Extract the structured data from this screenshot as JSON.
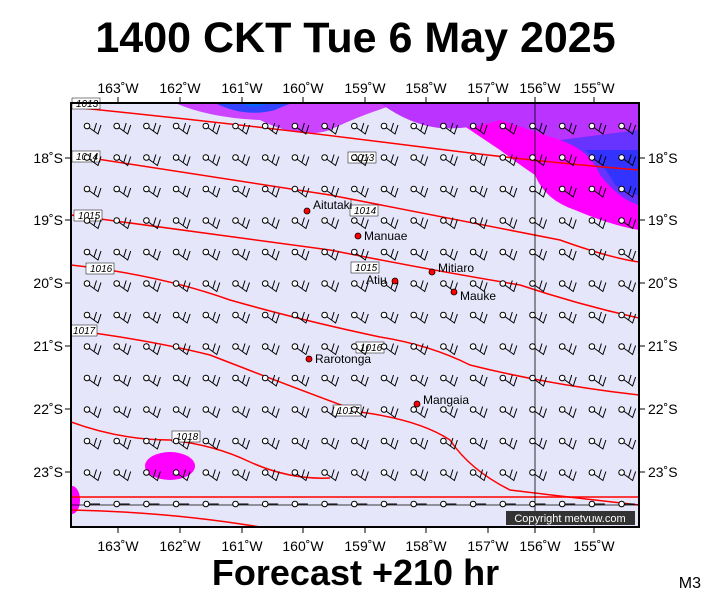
{
  "title": "1400 CKT Tue 6 May 2025",
  "footer": "Forecast +210 hr",
  "model_code": "M3",
  "copyright": "Copyright metvuw.com",
  "longitude_labels": [
    "163˚W",
    "162˚W",
    "161˚W",
    "160˚W",
    "159˚W",
    "158˚W",
    "157˚W",
    "156˚W",
    "155˚W"
  ],
  "latitude_labels": [
    "18˚S",
    "19˚S",
    "20˚S",
    "21˚S",
    "22˚S",
    "23˚S"
  ],
  "places": [
    {
      "name": "Aitutaki"
    },
    {
      "name": "Manuae"
    },
    {
      "name": "Atiu"
    },
    {
      "name": "Mitiaro"
    },
    {
      "name": "Mauke"
    },
    {
      "name": "Rarotonga"
    },
    {
      "name": "Mangaia"
    }
  ],
  "isobar_labels": [
    "1013",
    "1014",
    "1015",
    "1016",
    "1017",
    "1018"
  ],
  "colors": {
    "ocean": "#e6e6fa",
    "isobar": "#ff0000",
    "precip_magenta": "#ff00ff",
    "precip_purple": "#9933ff",
    "precip_blue": "#3333ff",
    "island": "#ff0000"
  }
}
